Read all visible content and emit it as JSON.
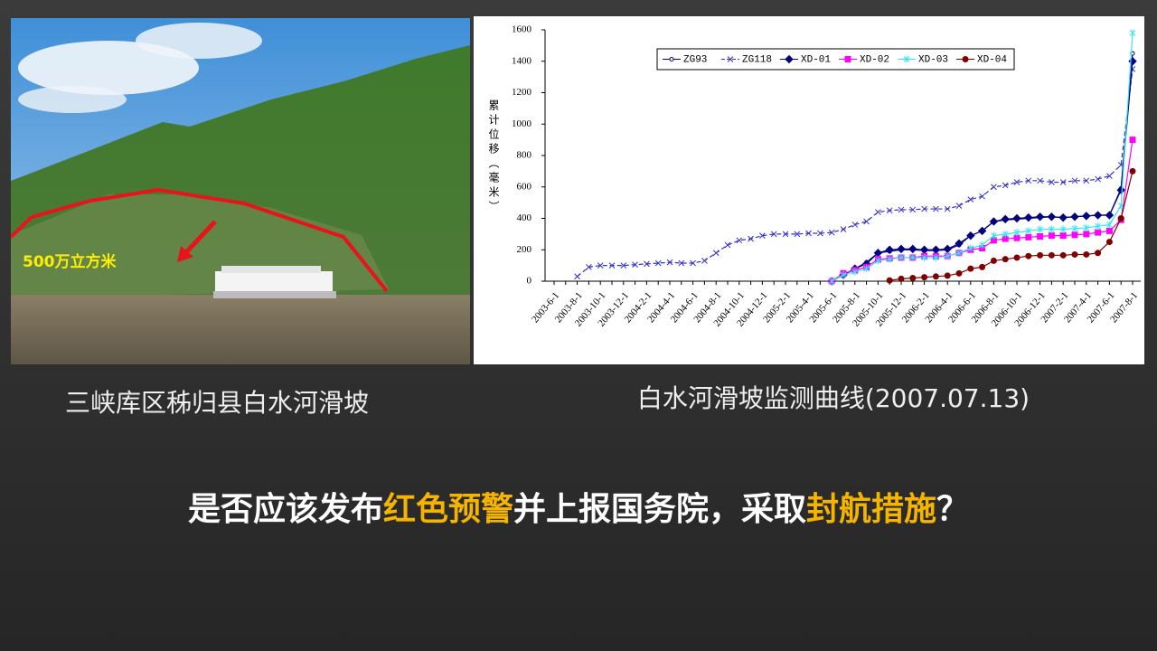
{
  "chart_data": {
    "type": "line",
    "y_label": "累计位移（毫米）",
    "categories": [
      "2003-6-1",
      null,
      "2003-8-1",
      null,
      "2003-10-1",
      null,
      "2003-12-1",
      null,
      "2004-2-1",
      null,
      "2004-4-1",
      null,
      "2004-6-1",
      null,
      "2004-8-1",
      null,
      "2004-10-1",
      null,
      "2004-12-1",
      null,
      "2005-2-1",
      null,
      "2005-4-1",
      null,
      "2005-6-1",
      null,
      "2005-8-1",
      null,
      "2005-10-1",
      null,
      "2005-12-1",
      null,
      "2006-2-1",
      null,
      "2006-4-1",
      null,
      "2006-6-1",
      null,
      "2006-8-1",
      null,
      "2006-10-1",
      null,
      "2006-12-1",
      null,
      "2007-2-1",
      null,
      "2007-4-1",
      null,
      "2007-6-1",
      null,
      "2007-8-1"
    ],
    "ylim": [
      0,
      1600
    ],
    "yticks": [
      0,
      200,
      400,
      600,
      800,
      1000,
      1200,
      1400,
      1600
    ],
    "grid": false,
    "legend": "top",
    "series": [
      {
        "name": "ZG93",
        "color": "#000080",
        "marker": "circle-open",
        "dash": false,
        "values": [
          null,
          null,
          null,
          null,
          null,
          null,
          null,
          null,
          null,
          null,
          null,
          null,
          null,
          null,
          null,
          null,
          null,
          null,
          null,
          null,
          null,
          null,
          null,
          null,
          0,
          40,
          80,
          120,
          180,
          190,
          200,
          200,
          195,
          195,
          200,
          230,
          290,
          320,
          380,
          390,
          395,
          400,
          405,
          410,
          405,
          410,
          415,
          420,
          420,
          590,
          1450
        ]
      },
      {
        "name": "ZG118",
        "color": "#3333cc",
        "marker": "x",
        "dash": true,
        "values": [
          null,
          null,
          30,
          90,
          100,
          100,
          100,
          105,
          110,
          115,
          120,
          115,
          115,
          130,
          180,
          230,
          260,
          270,
          290,
          300,
          300,
          300,
          305,
          305,
          310,
          330,
          360,
          380,
          440,
          450,
          455,
          455,
          460,
          460,
          460,
          480,
          520,
          540,
          600,
          610,
          630,
          640,
          640,
          630,
          630,
          640,
          640,
          650,
          670,
          740,
          1350
        ]
      },
      {
        "name": "XD-01",
        "color": "#000080",
        "marker": "diamond",
        "dash": false,
        "values": [
          null,
          null,
          null,
          null,
          null,
          null,
          null,
          null,
          null,
          null,
          null,
          null,
          null,
          null,
          null,
          null,
          null,
          null,
          null,
          null,
          null,
          null,
          null,
          null,
          0,
          40,
          80,
          110,
          180,
          200,
          205,
          205,
          200,
          200,
          205,
          240,
          290,
          320,
          380,
          395,
          400,
          405,
          410,
          410,
          405,
          410,
          415,
          420,
          420,
          580,
          1400
        ]
      },
      {
        "name": "XD-02",
        "color": "#ff00ff",
        "marker": "square",
        "dash": false,
        "values": [
          null,
          null,
          null,
          null,
          null,
          null,
          null,
          null,
          null,
          null,
          null,
          null,
          null,
          null,
          null,
          null,
          null,
          null,
          null,
          null,
          null,
          null,
          null,
          null,
          0,
          50,
          70,
          90,
          140,
          145,
          150,
          150,
          160,
          160,
          160,
          180,
          200,
          210,
          260,
          270,
          275,
          280,
          285,
          290,
          290,
          295,
          300,
          310,
          320,
          390,
          900
        ]
      },
      {
        "name": "XD-03",
        "color": "#33e6f0",
        "marker": "star",
        "dash": false,
        "values": [
          null,
          null,
          null,
          null,
          null,
          null,
          null,
          null,
          null,
          null,
          null,
          null,
          null,
          null,
          null,
          null,
          null,
          null,
          null,
          null,
          null,
          null,
          null,
          null,
          0,
          40,
          60,
          80,
          130,
          140,
          150,
          150,
          150,
          150,
          160,
          180,
          210,
          230,
          290,
          300,
          310,
          320,
          330,
          330,
          330,
          335,
          340,
          350,
          360,
          480,
          1580
        ]
      },
      {
        "name": "XD-04",
        "color": "#800000",
        "marker": "circle",
        "dash": false,
        "values": [
          null,
          null,
          null,
          null,
          null,
          null,
          null,
          null,
          null,
          null,
          null,
          null,
          null,
          null,
          null,
          null,
          null,
          null,
          null,
          null,
          null,
          null,
          null,
          null,
          null,
          null,
          null,
          null,
          null,
          5,
          15,
          20,
          25,
          30,
          35,
          50,
          80,
          90,
          130,
          140,
          150,
          160,
          165,
          165,
          165,
          170,
          170,
          180,
          250,
          400,
          700
        ]
      }
    ]
  },
  "photo": {
    "annotation": "500万立方米"
  },
  "captions": [
    "三峡库区秭归县白水河滑坡",
    "白水河滑坡监测曲线(2007.07.13)"
  ],
  "question": [
    {
      "text": "是否应该发布",
      "color": "#ffffff"
    },
    {
      "text": "红色预警",
      "color": "#f5b400"
    },
    {
      "text": "并上报国务院，采取",
      "color": "#ffffff"
    },
    {
      "text": "封航措施",
      "color": "#f5b400"
    },
    {
      "text": "？",
      "color": "#ffffff"
    }
  ]
}
